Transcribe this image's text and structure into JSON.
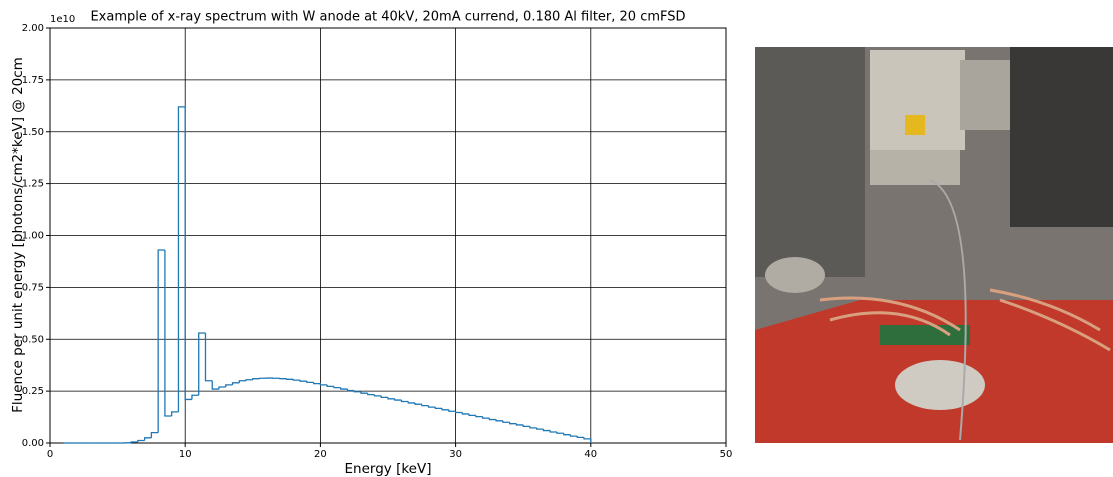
{
  "chart_data": {
    "type": "histogram",
    "title": "Example of x-ray spectrum with W anode at 40kV, 20mA currend, 0.180 Al filter, 20 cmFSD",
    "x_label": "Energy [keV]",
    "y_label": "Fluence per unit energy [photons/cm2*keV] @ 20cm",
    "y_offset_label": "1e10",
    "color": "#1f77b4",
    "grid": true,
    "xlim": [
      0,
      50
    ],
    "xticks": [
      0,
      10,
      20,
      30,
      40,
      50
    ],
    "ylim": [
      0,
      2
    ],
    "yticks": [
      {
        "value": 0,
        "label": "0.00"
      },
      {
        "value": 0.25,
        "label": "0.25"
      },
      {
        "value": 0.5,
        "label": "0.50"
      },
      {
        "value": 0.75,
        "label": "0.75"
      },
      {
        "value": 1,
        "label": "1.00"
      },
      {
        "value": 1.25,
        "label": "1.25"
      },
      {
        "value": 1.5,
        "label": "1.50"
      },
      {
        "value": 1.75,
        "label": "1.75"
      },
      {
        "value": 2,
        "label": "2.00"
      }
    ],
    "bins": [
      1,
      1.5,
      2,
      2.5,
      3,
      3.5,
      4,
      4.5,
      5,
      5.5,
      6,
      6.5,
      7,
      7.5,
      8,
      8.5,
      9,
      9.5,
      10,
      10.5,
      11,
      11.5,
      12,
      12.5,
      13,
      13.5,
      14,
      14.5,
      15,
      15.5,
      16,
      16.5,
      17,
      17.5,
      18,
      18.5,
      19,
      19.5,
      20,
      20.5,
      21,
      21.5,
      22,
      22.5,
      23,
      23.5,
      24,
      24.5,
      25,
      25.5,
      26,
      26.5,
      27,
      27.5,
      28,
      28.5,
      29,
      29.5,
      30,
      30.5,
      31,
      31.5,
      32,
      32.5,
      33,
      33.5,
      34,
      34.5,
      35,
      35.5,
      36,
      36.5,
      37,
      37.5,
      38,
      38.5,
      39,
      39.5,
      40
    ],
    "values": [
      0,
      0,
      0,
      0,
      0,
      0,
      0,
      0,
      0,
      0.001,
      0.005,
      0.012,
      0.025,
      0.05,
      0.93,
      0.13,
      0.15,
      1.62,
      0.21,
      0.23,
      0.53,
      0.3,
      0.26,
      0.27,
      0.28,
      0.29,
      0.3,
      0.305,
      0.31,
      0.312,
      0.313,
      0.312,
      0.31,
      0.307,
      0.303,
      0.298,
      0.292,
      0.286,
      0.28,
      0.273,
      0.267,
      0.26,
      0.253,
      0.247,
      0.24,
      0.233,
      0.227,
      0.22,
      0.213,
      0.207,
      0.2,
      0.193,
      0.187,
      0.18,
      0.173,
      0.167,
      0.16,
      0.153,
      0.147,
      0.14,
      0.133,
      0.127,
      0.12,
      0.113,
      0.107,
      0.1,
      0.093,
      0.087,
      0.08,
      0.073,
      0.067,
      0.06,
      0.053,
      0.047,
      0.04,
      0.033,
      0.027,
      0.02
    ]
  }
}
